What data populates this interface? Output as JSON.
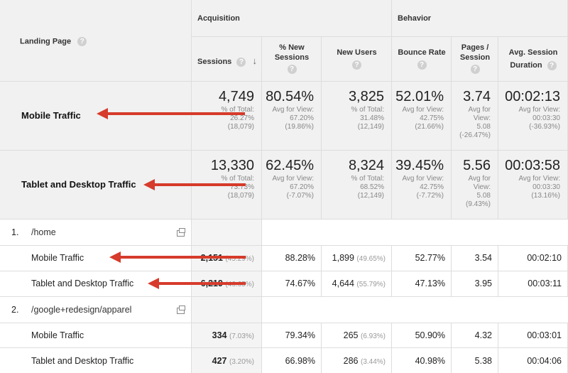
{
  "header": {
    "landing_page": "Landing Page",
    "acquisition": "Acquisition",
    "behavior": "Behavior",
    "col_sessions": "Sessions",
    "col_new_sessions_1": "% New",
    "col_new_sessions_2": "Sessions",
    "col_new_users": "New Users",
    "col_bounce_rate": "Bounce Rate",
    "col_pages_1": "Pages /",
    "col_pages_2": "Session",
    "col_duration_1": "Avg. Session",
    "col_duration_2": "Duration",
    "help": "?"
  },
  "summary": [
    {
      "segment": "Mobile Traffic",
      "sessions": "4,749",
      "sessions_s1": "% of Total:",
      "sessions_s2": "26.27%",
      "sessions_s3": "(18,079)",
      "new_sessions": "80.54%",
      "new_sessions_s1": "Avg for View:",
      "new_sessions_s2": "67.20%",
      "new_sessions_s3": "(19.86%)",
      "new_users": "3,825",
      "new_users_s1": "% of Total:",
      "new_users_s2": "31.48%",
      "new_users_s3": "(12,149)",
      "bounce": "52.01%",
      "bounce_s1": "Avg for View:",
      "bounce_s2": "42.75%",
      "bounce_s3": "(21.66%)",
      "pages": "3.74",
      "pages_s1": "Avg for",
      "pages_s2": "View:",
      "pages_s3": "5.08",
      "pages_s4": "(-26.47%)",
      "duration": "00:02:13",
      "duration_s1": "Avg for View:",
      "duration_s2": "00:03:30",
      "duration_s3": "(-36.93%)"
    },
    {
      "segment": "Tablet and Desktop Traffic",
      "sessions": "13,330",
      "sessions_s1": "% of Total:",
      "sessions_s2": "73.73%",
      "sessions_s3": "(18,079)",
      "new_sessions": "62.45%",
      "new_sessions_s1": "Avg for View:",
      "new_sessions_s2": "67.20%",
      "new_sessions_s3": "(-7.07%)",
      "new_users": "8,324",
      "new_users_s1": "% of Total:",
      "new_users_s2": "68.52%",
      "new_users_s3": "(12,149)",
      "bounce": "39.45%",
      "bounce_s1": "Avg for View:",
      "bounce_s2": "42.75%",
      "bounce_s3": "(-7.72%)",
      "pages": "5.56",
      "pages_s1": "Avg for",
      "pages_s2": "View:",
      "pages_s3": "5.08",
      "pages_s4": "(9.43%)",
      "duration": "00:03:58",
      "duration_s1": "Avg for View:",
      "duration_s2": "00:03:30",
      "duration_s3": "(13.16%)"
    }
  ],
  "pages": [
    {
      "index": "1.",
      "path": "/home",
      "rows": [
        {
          "segment": "Mobile Traffic",
          "sessions": "2,151",
          "sessions_pct": "(45.29%)",
          "new_sessions": "88.28%",
          "new_users": "1,899",
          "new_users_pct": "(49.65%)",
          "bounce": "52.77%",
          "pages": "3.54",
          "duration": "00:02:10"
        },
        {
          "segment": "Tablet and Desktop Traffic",
          "sessions": "6,219",
          "sessions_pct": "(46.65%)",
          "new_sessions": "74.67%",
          "new_users": "4,644",
          "new_users_pct": "(55.79%)",
          "bounce": "47.13%",
          "pages": "3.95",
          "duration": "00:03:11"
        }
      ]
    },
    {
      "index": "2.",
      "path": "/google+redesign/apparel",
      "rows": [
        {
          "segment": "Mobile Traffic",
          "sessions": "334",
          "sessions_pct": "(7.03%)",
          "new_sessions": "79.34%",
          "new_users": "265",
          "new_users_pct": "(6.93%)",
          "bounce": "50.90%",
          "pages": "4.32",
          "duration": "00:03:01"
        },
        {
          "segment": "Tablet and Desktop Traffic",
          "sessions": "427",
          "sessions_pct": "(3.20%)",
          "new_sessions": "66.98%",
          "new_users": "286",
          "new_users_pct": "(3.44%)",
          "bounce": "40.98%",
          "pages": "5.38",
          "duration": "00:04:06"
        }
      ]
    }
  ],
  "colors": {
    "arrow": "#d63b2b",
    "header_bg": "#f1f1f1",
    "sessions_col_bg": "#f4f4f4"
  }
}
